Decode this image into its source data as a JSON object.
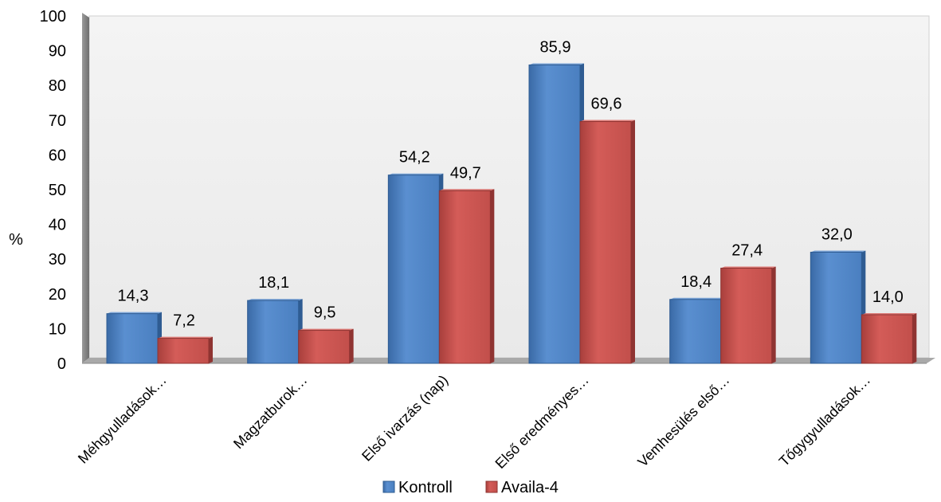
{
  "chart_data": {
    "type": "bar",
    "ylabel": "%",
    "ylim": [
      0,
      100
    ],
    "yticks": [
      0,
      10,
      20,
      30,
      40,
      50,
      60,
      70,
      80,
      90,
      100
    ],
    "categories": [
      "Méhgyulladások…",
      "Magzatburok…",
      "Első ivarzás (nap)",
      "Első eredményes…",
      "Vemhesülés első…",
      "Tőgygyulladások…"
    ],
    "series": [
      {
        "name": "Kontroll",
        "color": "#4F81BD",
        "values": [
          14.3,
          18.1,
          54.2,
          85.9,
          18.4,
          32.0
        ],
        "labels": [
          "14,3",
          "18,1",
          "54,2",
          "85,9",
          "18,4",
          "32,0"
        ]
      },
      {
        "name": "Availa-4",
        "color": "#C0504D",
        "values": [
          7.2,
          9.5,
          49.7,
          69.6,
          27.4,
          14.0
        ],
        "labels": [
          "7,2",
          "9,5",
          "49,7",
          "69,6",
          "27,4",
          "14,0"
        ]
      }
    ],
    "grid": false,
    "legend_position": "bottom"
  }
}
